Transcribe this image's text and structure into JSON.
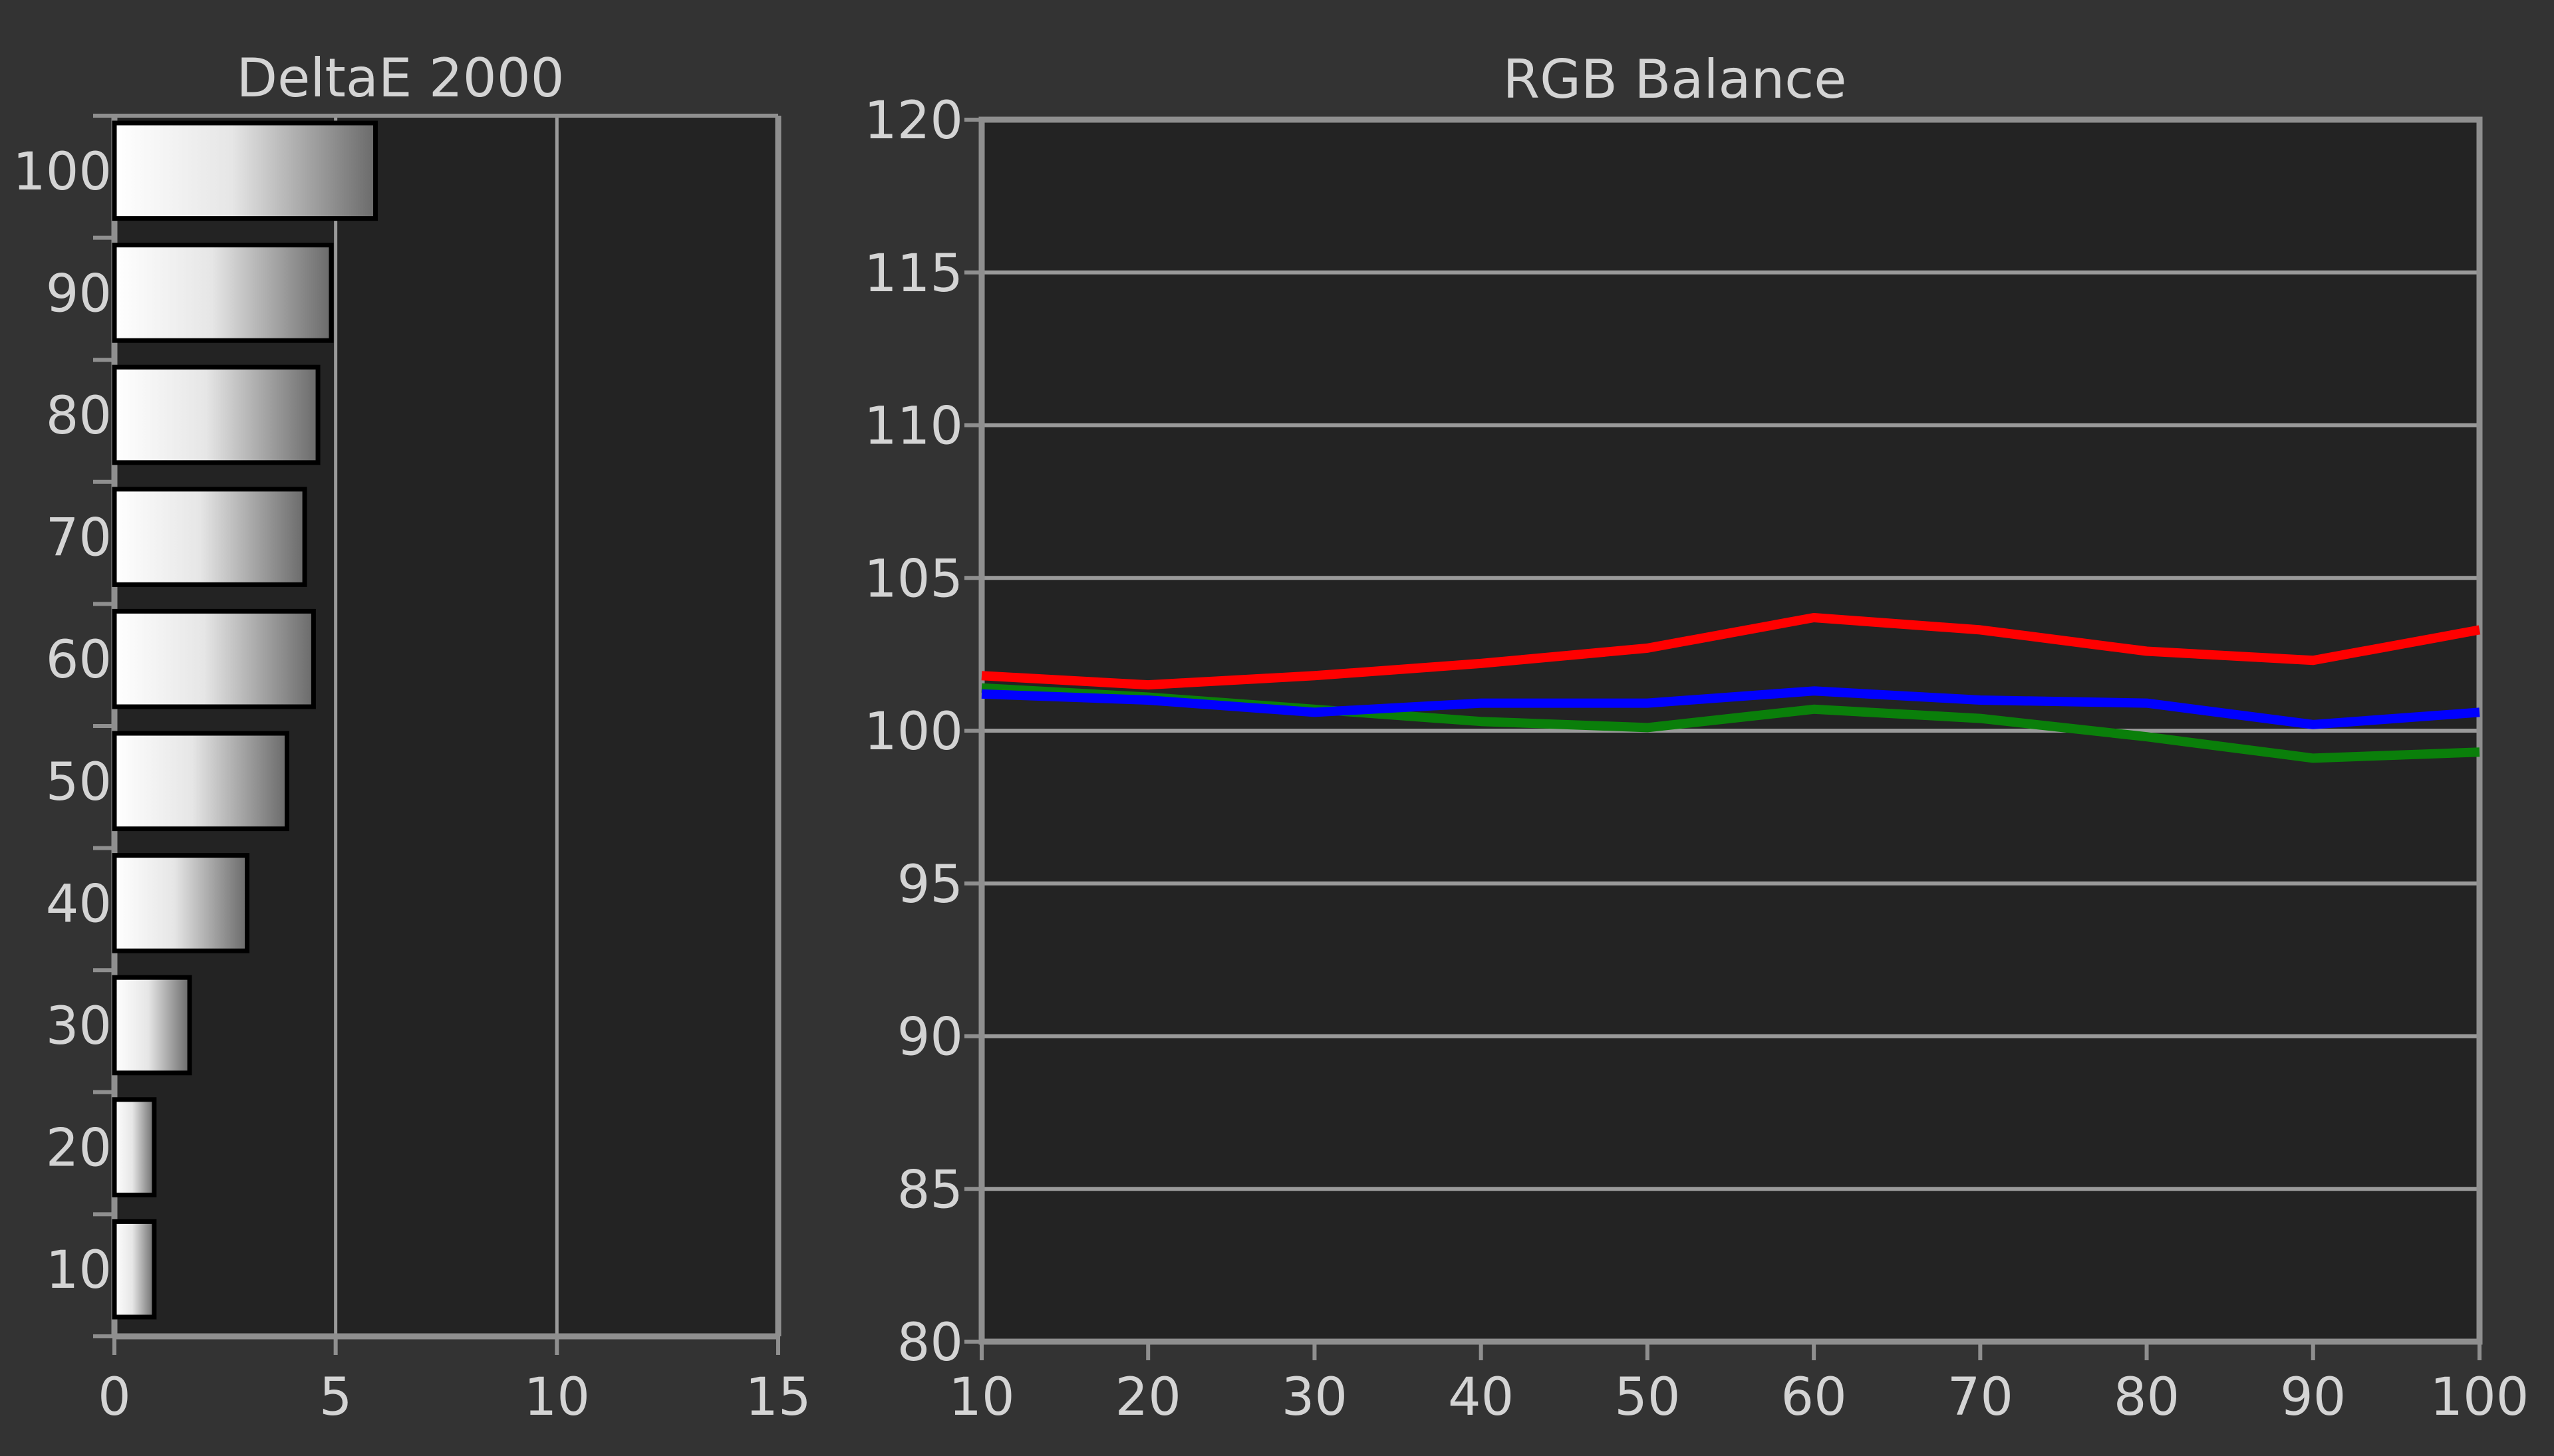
{
  "colors": {
    "background": "#333333",
    "plot_bg": "#232323",
    "frame": "#8f8f8f",
    "grid": "#9a9a9a",
    "text": "#d4d4d4",
    "red": "#ff0000",
    "green": "#0a7f0a",
    "blue": "#0000ff"
  },
  "chart_data": [
    {
      "type": "bar",
      "orientation": "horizontal",
      "title": "DeltaE 2000",
      "categories": [
        "100",
        "90",
        "80",
        "70",
        "60",
        "50",
        "40",
        "30",
        "20",
        "10"
      ],
      "values": [
        5.9,
        4.9,
        4.6,
        4.3,
        4.5,
        3.9,
        3.0,
        1.7,
        0.9,
        0.9
      ],
      "xlim": [
        0,
        15
      ],
      "xticks": [
        "0",
        "5",
        "10",
        "15"
      ],
      "grid": true,
      "legend": "none"
    },
    {
      "type": "line",
      "title": "RGB Balance",
      "x": [
        10,
        20,
        30,
        40,
        50,
        60,
        70,
        80,
        90,
        100
      ],
      "xticks": [
        "10",
        "20",
        "30",
        "40",
        "50",
        "60",
        "70",
        "80",
        "90",
        "100"
      ],
      "yticks": [
        "120",
        "115",
        "110",
        "105",
        "100",
        "95",
        "90",
        "85",
        "80"
      ],
      "xlim": [
        10,
        100
      ],
      "ylim": [
        80,
        120
      ],
      "grid": true,
      "legend": "none",
      "series": [
        {
          "color": "red",
          "values": [
            101.8,
            101.5,
            101.8,
            102.2,
            102.7,
            103.7,
            103.3,
            102.6,
            102.3,
            103.3
          ]
        },
        {
          "color": "green",
          "values": [
            101.4,
            101.1,
            100.7,
            100.3,
            100.1,
            100.7,
            100.4,
            99.8,
            99.1,
            99.3
          ]
        },
        {
          "color": "blue",
          "values": [
            101.2,
            101.0,
            100.6,
            100.9,
            100.9,
            101.3,
            101.0,
            100.9,
            100.2,
            100.6
          ]
        }
      ]
    }
  ]
}
